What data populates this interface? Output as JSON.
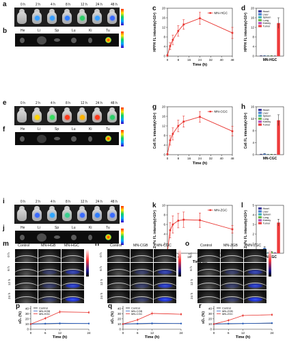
{
  "panel_letters": [
    "a",
    "b",
    "c",
    "d",
    "e",
    "f",
    "g",
    "h",
    "i",
    "j",
    "k",
    "l",
    "m",
    "n",
    "o",
    "p",
    "q",
    "r"
  ],
  "time_labels": [
    "0 h",
    "2 h",
    "4 h",
    "8 h",
    "12 h",
    "24 h",
    "48 h"
  ],
  "organ_labels": [
    "He",
    "Li",
    "Sp",
    "Lu",
    "Ki",
    "Tu"
  ],
  "groups": [
    {
      "name": "MN-HGC",
      "line_ylabel": "HPPH FL intensity(×10⁸)",
      "bar_ylabel": "HPPH FL intensity(×10⁸)",
      "bar_xlabel": "MN-HGC"
    },
    {
      "name": "MN-CGC",
      "line_ylabel": "Ce6 FL intensity(×10⁸)",
      "bar_ylabel": "Ce6 FL intensity(×10⁸)",
      "bar_xlabel": "MN-CGC"
    },
    {
      "name": "MN-ZGC",
      "line_ylabel": "ZnPc FL intensity(×10⁸)",
      "bar_ylabel": "ZnPc FL intensity(×10⁸)",
      "bar_xlabel": "MN-ZGC"
    }
  ],
  "line_xlabel": "Time (h)",
  "legend_organs": [
    "Heart",
    "Liver",
    "Spleen",
    "Lung",
    "Kidney",
    "Tumor"
  ],
  "organ_colors": [
    "#3b3b9c",
    "#4a7fd1",
    "#3fb0b8",
    "#6bb84a",
    "#b24fc0",
    "#ee3b3b"
  ],
  "us_columns": [
    [
      "Control",
      "MN-HGB",
      "MN-HGC"
    ],
    [
      "Control",
      "MN-CGB",
      "MN-CGC"
    ],
    [
      "Control",
      "MN-ZGB",
      "MN-ZGC"
    ]
  ],
  "us_rows": [
    "0 h",
    "6 h",
    "12 h",
    "24 h"
  ],
  "so2_ylabel": "sO₂ (%)",
  "so2_xlabel": "Time (h)",
  "chart_data": [
    {
      "type": "line",
      "title": "",
      "xlabel": "Time (h)",
      "ylabel": "HPPH FL intensity(×10⁸)",
      "x": [
        0,
        2,
        4,
        8,
        12,
        24,
        48
      ],
      "series": [
        {
          "name": "MN-HGC",
          "values": [
            0.3,
            4.2,
            6.8,
            10.5,
            13.2,
            15.8,
            9.7
          ],
          "err": [
            0.3,
            1.5,
            2.0,
            2.2,
            2.0,
            2.5,
            2.3
          ]
        }
      ],
      "xlim": [
        0,
        48
      ],
      "ylim": [
        0,
        20
      ],
      "xticks": [
        0,
        8,
        16,
        24,
        32,
        40,
        48
      ],
      "yticks": [
        0,
        4,
        8,
        12,
        16,
        20
      ]
    },
    {
      "type": "bar",
      "xlabel": "MN-HGC",
      "ylabel": "HPPH FL intensity(×10⁸)",
      "categories": [
        "Heart",
        "Liver",
        "Spleen",
        "Lung",
        "Kidney",
        "Tumor"
      ],
      "values": [
        0.15,
        0.2,
        0.12,
        0.15,
        0.1,
        13.8
      ],
      "err": [
        0.05,
        0.05,
        0.04,
        0.05,
        0.03,
        2.2
      ],
      "ylim": [
        0,
        20
      ],
      "yticks": [
        0,
        4,
        8,
        12,
        16,
        20
      ]
    },
    {
      "type": "line",
      "xlabel": "Time (h)",
      "ylabel": "Ce6 FL intensity(×10⁸)",
      "x": [
        0,
        2,
        4,
        8,
        12,
        24,
        48
      ],
      "series": [
        {
          "name": "MN-CGC",
          "values": [
            0.2,
            6.0,
            8.7,
            12.0,
            13.8,
            15.8,
            9.8
          ],
          "err": [
            0.2,
            2.0,
            2.5,
            2.4,
            2.3,
            2.2,
            2.0
          ]
        }
      ],
      "xlim": [
        0,
        48
      ],
      "ylim": [
        0,
        20
      ],
      "xticks": [
        0,
        8,
        16,
        24,
        32,
        40,
        48
      ],
      "yticks": [
        0,
        4,
        8,
        12,
        16,
        20
      ]
    },
    {
      "type": "bar",
      "xlabel": "MN-CGC",
      "ylabel": "Ce6 FL intensity(×10⁸)",
      "categories": [
        "Heart",
        "Liver",
        "Spleen",
        "Lung",
        "Kidney",
        "Tumor"
      ],
      "values": [
        0.15,
        0.3,
        0.1,
        0.12,
        0.08,
        11.5
      ],
      "err": [
        0.05,
        0.08,
        0.03,
        0.04,
        0.03,
        1.8
      ],
      "ylim": [
        0,
        16
      ],
      "yticks": [
        0,
        4,
        8,
        12,
        16
      ]
    },
    {
      "type": "line",
      "xlabel": "Time (h)",
      "ylabel": "ZnPc FL intensity(×10⁸)",
      "x": [
        0,
        2,
        4,
        8,
        12,
        24,
        48
      ],
      "series": [
        {
          "name": "MN-ZGC",
          "values": [
            0.3,
            4.8,
            6.0,
            6.8,
            7.0,
            6.9,
            5.0
          ],
          "err": [
            0.3,
            1.6,
            1.8,
            1.5,
            1.6,
            1.5,
            0.8
          ]
        }
      ],
      "xlim": [
        0,
        48
      ],
      "ylim": [
        0,
        10
      ],
      "xticks": [
        0,
        8,
        16,
        24,
        32,
        40,
        48
      ],
      "yticks": [
        0,
        2,
        4,
        6,
        8,
        10
      ]
    },
    {
      "type": "bar",
      "xlabel": "MN-ZGC",
      "ylabel": "ZnPc FL intensity(×10⁸)",
      "categories": [
        "Heart",
        "Liver",
        "Spleen",
        "Lung",
        "Kidney",
        "Tumor"
      ],
      "values": [
        0.05,
        0.55,
        0.05,
        0.15,
        0.05,
        3.2
      ],
      "err": [
        0.03,
        0.15,
        0.02,
        0.05,
        0.02,
        0.35
      ],
      "ylim": [
        0,
        5
      ],
      "yticks": [
        0,
        1,
        2,
        3,
        4,
        5
      ]
    },
    {
      "type": "line",
      "xlabel": "Time (h)",
      "ylabel": "sO₂ (%)",
      "x": [
        0,
        6,
        12,
        24
      ],
      "series": [
        {
          "name": "Control",
          "values": [
            10,
            10.5,
            11,
            11
          ],
          "err": [
            1,
            1.2,
            1.3,
            1.2
          ]
        },
        {
          "name": "MN-HGB",
          "values": [
            10,
            11,
            11.5,
            11
          ],
          "err": [
            1,
            1.5,
            1.5,
            1.3
          ]
        },
        {
          "name": "MN-HGC",
          "values": [
            10,
            21,
            33.5,
            32.5
          ],
          "err": [
            1,
            3,
            3.5,
            3
          ]
        }
      ],
      "xlim": [
        0,
        24
      ],
      "ylim": [
        0,
        45
      ],
      "xticks": [
        0,
        6,
        12,
        18,
        24
      ],
      "yticks": [
        0,
        10,
        20,
        30,
        40
      ]
    },
    {
      "type": "line",
      "xlabel": "Time (h)",
      "ylabel": "sO₂ (%)",
      "x": [
        0,
        6,
        12,
        24
      ],
      "series": [
        {
          "name": "Control",
          "values": [
            10,
            10.5,
            11,
            11
          ],
          "err": [
            1,
            1.2,
            1.3,
            1.2
          ]
        },
        {
          "name": "MN-CGB",
          "values": [
            10,
            11,
            11.5,
            11
          ],
          "err": [
            1,
            1.5,
            1.5,
            1.3
          ]
        },
        {
          "name": "MN-CGC",
          "values": [
            10,
            18,
            30.5,
            29
          ],
          "err": [
            1,
            3,
            3.5,
            3
          ]
        }
      ],
      "xlim": [
        0,
        24
      ],
      "ylim": [
        0,
        45
      ],
      "xticks": [
        0,
        6,
        12,
        18,
        24
      ],
      "yticks": [
        0,
        10,
        20,
        30,
        40
      ]
    },
    {
      "type": "line",
      "xlabel": "Time (h)",
      "ylabel": "sO₂ (%)",
      "x": [
        0,
        6,
        12,
        24
      ],
      "series": [
        {
          "name": "Control",
          "values": [
            10,
            10.5,
            11,
            11.5
          ],
          "err": [
            1,
            1.2,
            1.3,
            1.2
          ]
        },
        {
          "name": "MN-ZGB",
          "values": [
            10,
            11,
            11,
            12
          ],
          "err": [
            1,
            1.5,
            1.5,
            1.3
          ]
        },
        {
          "name": "MN-ZGC",
          "values": [
            10,
            17,
            26.5,
            28
          ],
          "err": [
            1,
            3,
            3,
            3
          ]
        }
      ],
      "xlim": [
        0,
        24
      ],
      "ylim": [
        0,
        45
      ],
      "xticks": [
        0,
        6,
        12,
        18,
        24
      ],
      "yticks": [
        0,
        10,
        20,
        30,
        40
      ]
    }
  ]
}
